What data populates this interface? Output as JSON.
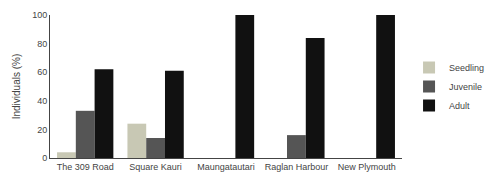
{
  "chart_data": {
    "type": "bar",
    "categories": [
      "The 309 Road",
      "Square Kauri",
      "Maungatautari",
      "Raglan Harbour",
      "New Plymouth"
    ],
    "series": [
      {
        "name": "Seedling",
        "color": "#c8c8b4",
        "values": [
          4,
          24,
          0,
          0,
          0
        ]
      },
      {
        "name": "Juvenile",
        "color": "#555555",
        "values": [
          33,
          14,
          0,
          16,
          0
        ]
      },
      {
        "name": "Adult",
        "color": "#111111",
        "values": [
          62,
          61,
          100,
          84,
          100
        ]
      }
    ],
    "ylabel": "Individuals (%)",
    "ylim": [
      0,
      100
    ],
    "yticks": [
      0,
      20,
      40,
      60,
      80,
      100
    ],
    "grid": false,
    "legend": "right"
  }
}
